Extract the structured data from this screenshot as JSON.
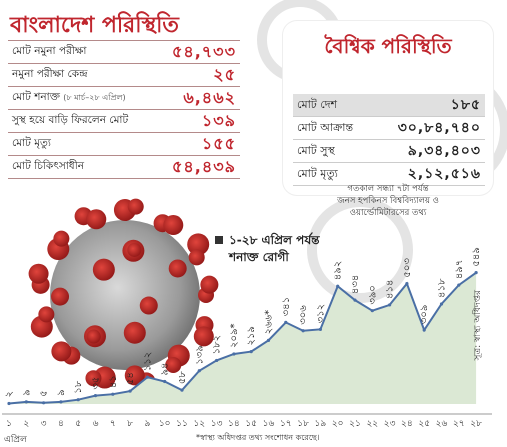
{
  "bangladesh": {
    "title": "বাংলাদেশ পরিস্থিতি",
    "rows": [
      {
        "label": "মোট নমুনা পরীক্ষা",
        "sub": "",
        "value": "৫৪,৭৩৩"
      },
      {
        "label": "নমুনা পরীক্ষা কেন্দ্র",
        "sub": "",
        "value": "২৫"
      },
      {
        "label": "মোট শনাক্ত",
        "sub": "(৮ মার্চ–২৮ এপ্রিল)",
        "value": "৬,৪৬২"
      },
      {
        "label": "সুস্থ হয়ে বাড়ি ফিরলেন মোট",
        "sub": "",
        "value": "১৩৯"
      },
      {
        "label": "মোট মৃত্যু",
        "sub": "",
        "value": "১৫৫"
      },
      {
        "label": "মোট চিকিৎসাধীন",
        "sub": "",
        "value": "৫৪,৪৩৯"
      }
    ]
  },
  "global": {
    "title": "বৈশ্বিক পরিস্থিতি",
    "rows": [
      {
        "label": "মোট দেশ",
        "value": "১৮৫"
      },
      {
        "label": "মোট আক্রান্ত",
        "value": "৩০,৮৪,৭৪০"
      },
      {
        "label": "মোট সুস্থ",
        "value": "৯,৩৪,৪০৩"
      },
      {
        "label": "মোট মৃত্যু",
        "value": "২,১২,৫১৬"
      }
    ],
    "note_line1": "গতকাল সন্ধ্যা ৭টা পর্যন্ত",
    "note_line2": "জনস হপকিনস বিশ্ববিদ্যালয় ও",
    "note_line3": "ওয়ার্ল্ডোমিটারসের তথ্য"
  },
  "colors": {
    "accent": "#c0262e",
    "area": "#dbe8d4",
    "line": "#4a6fa5"
  },
  "chart_data": {
    "type": "area",
    "title_line1": "১-২৮ এপ্রিল পর্যন্ত",
    "title_line2": "শনাক্ত রোগী",
    "x": [
      1,
      2,
      3,
      4,
      5,
      6,
      7,
      8,
      9,
      10,
      11,
      12,
      13,
      14,
      15,
      16,
      17,
      18,
      19,
      20,
      21,
      22,
      23,
      24,
      25,
      26,
      27,
      28
    ],
    "x_labels": [
      "১",
      "২",
      "৩",
      "৪",
      "৫",
      "৬",
      "৭",
      "৮",
      "৯",
      "১০",
      "১১",
      "১২",
      "১৩",
      "১৪",
      "১৫",
      "১৬",
      "১৭",
      "১৮",
      "১৯",
      "২০",
      "২১",
      "২২",
      "২৩",
      "২৪",
      "২৫",
      "২৬",
      "২৭",
      "২৮"
    ],
    "values": [
      2,
      9,
      5,
      9,
      18,
      35,
      41,
      54,
      112,
      94,
      58,
      139,
      182,
      209,
      219,
      266,
      341,
      306,
      312,
      492,
      434,
      390,
      414,
      503,
      309,
      418,
      497,
      549
    ],
    "value_labels": [
      "২",
      "৯",
      "৫",
      "৯",
      "১৮",
      "৩৫",
      "৪১",
      "৫৪",
      "১১২",
      "৯৪",
      "৫৮",
      "১৩৯",
      "১৮২",
      "২০৯*",
      "২১৯",
      "২৬৬*",
      "৩৪১",
      "৩০৬",
      "৩১২",
      "৪৯২",
      "৪৩৪",
      "৩৯০",
      "৪১৪",
      "৫০৩",
      "৩০৯",
      "৪১৮",
      "৪৯৭",
      "৫৪৯"
    ],
    "x_unit": "এপ্রিল",
    "ylim": [
      0,
      560
    ]
  },
  "source": "সূত্র: স্বাস্থ্য অধিদপ্তর",
  "footnote": "*স্বাস্থ্য অধিদপ্তর তথ্য সংশোধন করেছে।"
}
